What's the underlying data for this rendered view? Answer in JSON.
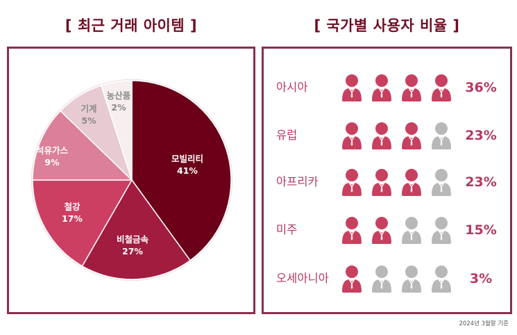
{
  "left_panel": {
    "title": "[ 최근 거래 아이템 ]"
  },
  "right_panel": {
    "title": "[ 국가별 사용자 비율 ]"
  },
  "footnote": "2024년 3월말 기준",
  "colors": {
    "title": "#6e0e24",
    "border": "#8a2f4d",
    "accent": "#c8405f",
    "inactive": "#b8b8b8",
    "country_text": "#b53a5f"
  },
  "chart_data": [
    {
      "type": "pie",
      "title": "[ 최근 거래 아이템 ]",
      "categories": [
        "모빌리티",
        "비철금속",
        "철강",
        "석유가스",
        "기계",
        "농산품"
      ],
      "values": [
        41,
        27,
        17,
        9,
        5,
        2
      ],
      "labels": [
        "41%",
        "27%",
        "17%",
        "9%",
        "5%",
        "2%"
      ],
      "colors": [
        "#6b0018",
        "#a21c40",
        "#cc3f63",
        "#dc7f98",
        "#e8cad2",
        "#f7eeef"
      ],
      "label_colors": [
        "#ffffff",
        "#ffffff",
        "#ffffff",
        "#ffffff",
        "#8a8a8a",
        "#8a8a8a"
      ],
      "legend": "none"
    },
    {
      "type": "table",
      "title": "[ 국가별 사용자 비율 ]",
      "categories": [
        "아시아",
        "유럽",
        "아프리카",
        "미주",
        "오세아니아"
      ],
      "values": [
        36,
        23,
        23,
        15,
        3
      ],
      "labels": [
        "36%",
        "23%",
        "23%",
        "15%",
        "3%"
      ],
      "icons_filled": [
        4,
        3,
        3,
        2,
        1
      ],
      "icons_total": 4
    }
  ],
  "pie": {
    "slices": [
      {
        "name": "모빌리티",
        "pct": "41%"
      },
      {
        "name": "비철금속",
        "pct": "27%"
      },
      {
        "name": "철강",
        "pct": "17%"
      },
      {
        "name": "석유가스",
        "pct": "9%"
      },
      {
        "name": "기계",
        "pct": "5%"
      },
      {
        "name": "농산품",
        "pct": "2%"
      }
    ]
  },
  "countries": [
    {
      "name": "아시아",
      "pct": "36%",
      "filled": 4
    },
    {
      "name": "유럽",
      "pct": "23%",
      "filled": 3
    },
    {
      "name": "아프리카",
      "pct": "23%",
      "filled": 3
    },
    {
      "name": "미주",
      "pct": "15%",
      "filled": 2
    },
    {
      "name": "오세아니아",
      "pct": "3%",
      "filled": 1
    }
  ],
  "icon": "person-icon"
}
